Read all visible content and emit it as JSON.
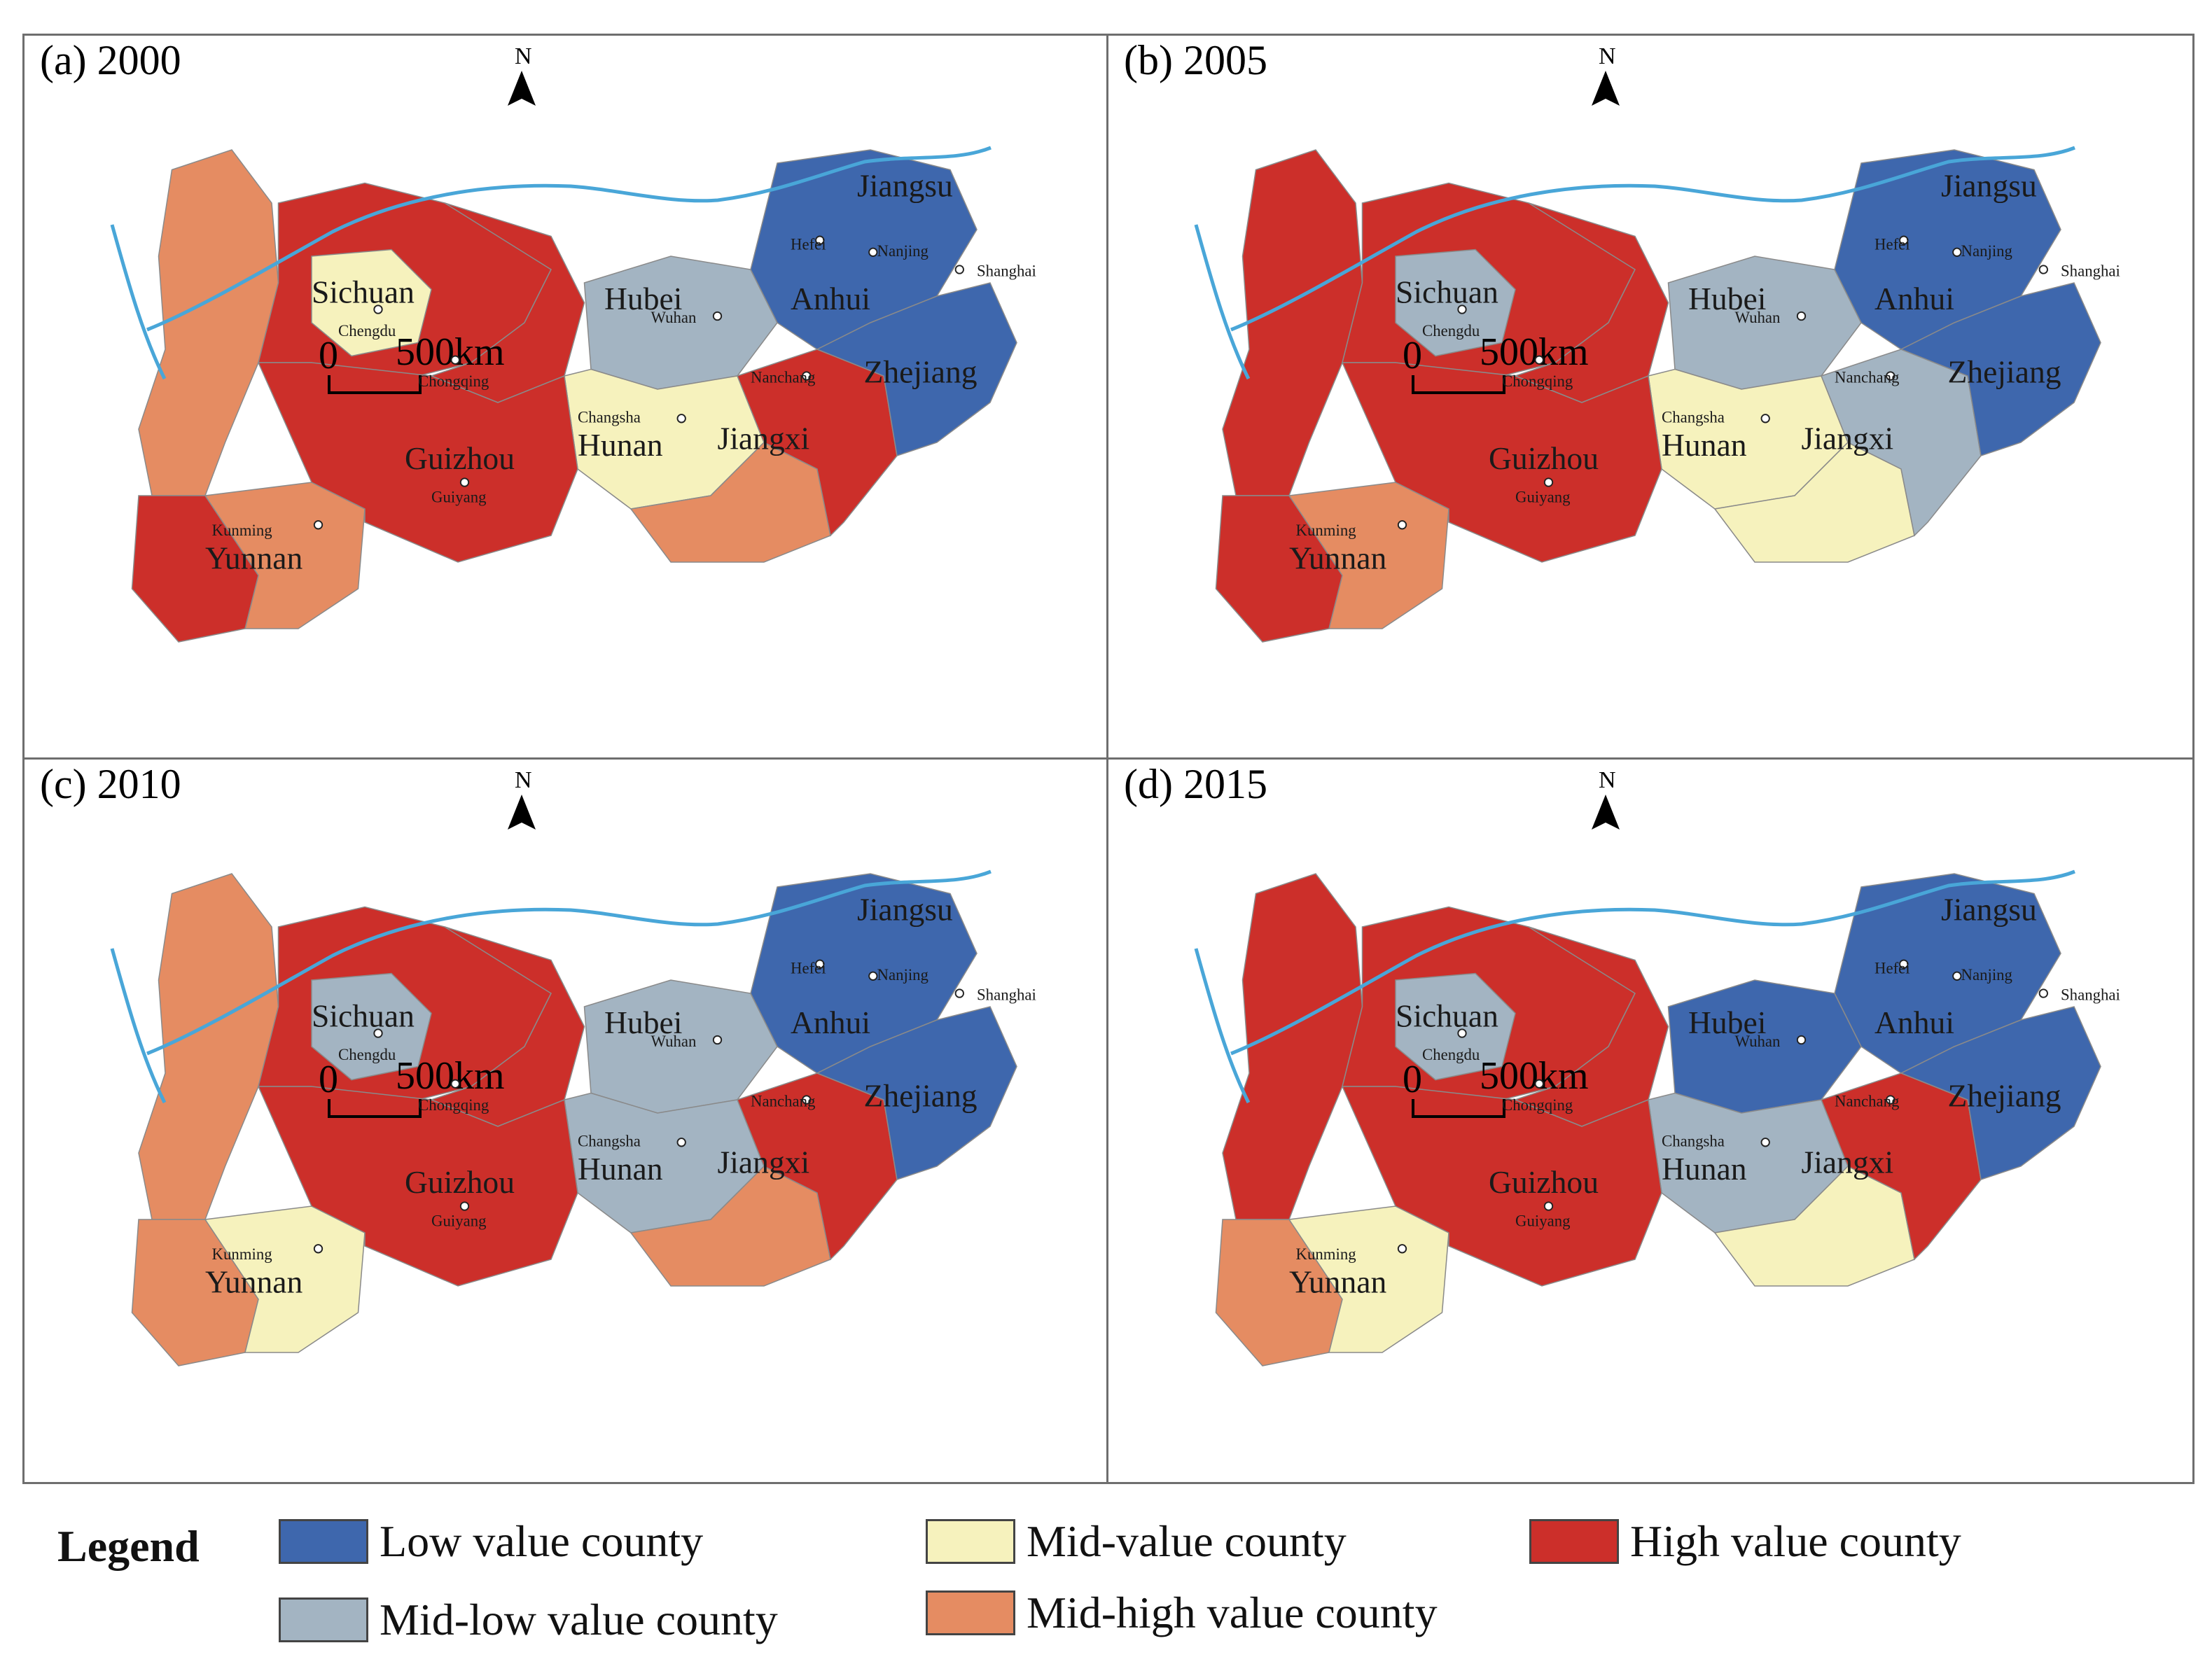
{
  "colors": {
    "low": "#3e67ad",
    "midlow": "#a3b4c2",
    "mid": "#f6f2bd",
    "midhigh": "#e58c62",
    "high": "#cc2f2a",
    "river": "#49a6d8",
    "border": "#8a8a8a"
  },
  "panels": [
    {
      "title": "(a) 2000",
      "scheme": [
        "midhigh",
        "high",
        "mid",
        "high",
        "high",
        "midhigh",
        "midlow",
        "mid",
        "high",
        "midhigh",
        "high",
        "low",
        "low"
      ]
    },
    {
      "title": "(b) 2005",
      "scheme": [
        "high",
        "high",
        "midlow",
        "high",
        "high",
        "midhigh",
        "midlow",
        "mid",
        "high",
        "mid",
        "midlow",
        "low",
        "low"
      ]
    },
    {
      "title": "(c) 2010",
      "scheme": [
        "midhigh",
        "high",
        "midlow",
        "high",
        "midhigh",
        "mid",
        "midlow",
        "midlow",
        "high",
        "midhigh",
        "high",
        "low",
        "low"
      ]
    },
    {
      "title": "(d) 2015",
      "scheme": [
        "high",
        "high",
        "midlow",
        "high",
        "midhigh",
        "mid",
        "low",
        "midlow",
        "high",
        "mid",
        "high",
        "low",
        "low"
      ]
    }
  ],
  "provinces": [
    "Sichuan",
    "Hubei",
    "Anhui",
    "Jiangsu",
    "Zhejiang",
    "Hunan",
    "Jiangxi",
    "Guizhou",
    "Yunnan"
  ],
  "cities": [
    "Chengdu",
    "Chongqing",
    "Wuhan",
    "Hefei",
    "Nanjing",
    "Shanghai",
    "Nanchang",
    "Changsha",
    "Guiyang",
    "Kunming"
  ],
  "north_label": "N",
  "scale": {
    "zero": "0",
    "distance": "500km"
  },
  "legend": {
    "title": "Legend",
    "items": [
      {
        "key": "low",
        "label": "Low value county"
      },
      {
        "key": "midlow",
        "label": "Mid-low value county"
      },
      {
        "key": "mid",
        "label": "Mid-value county"
      },
      {
        "key": "midhigh",
        "label": "Mid-high value county"
      },
      {
        "key": "high",
        "label": "High value county"
      }
    ]
  }
}
